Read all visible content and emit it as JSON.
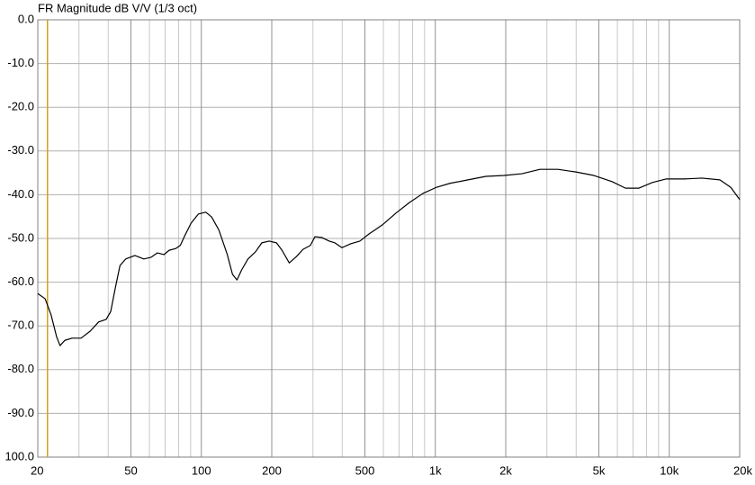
{
  "chart_data": {
    "type": "line",
    "title": "FR Magnitude dB V/V (1/3 oct)",
    "x": [
      20,
      21.5,
      22.8,
      24.1,
      24.9,
      26.1,
      28,
      30.6,
      33.5,
      36.4,
      39.2,
      41,
      42.9,
      44.9,
      47.5,
      52,
      56.8,
      61,
      64.9,
      69.2,
      72.9,
      77.8,
      81.3,
      84.9,
      90.4,
      97.2,
      104.5,
      110.7,
      118.9,
      128.8,
      135.9,
      142,
      148.7,
      158.2,
      170.2,
      181.3,
      194.9,
      209.5,
      221.2,
      237.6,
      255.4,
      272,
      292.4,
      306,
      328,
      352,
      372,
      399,
      436,
      476,
      520,
      594,
      679,
      775,
      886,
      1012,
      1155,
      1379,
      1646,
      1965,
      2346,
      2800,
      3343,
      3990,
      4765,
      5690,
      6500,
      7420,
      8470,
      9680,
      11560,
      13780,
      16450,
      18300,
      20000
    ],
    "values": [
      -62.6,
      -63.8,
      -67.5,
      -72.6,
      -74.5,
      -73.3,
      -72.8,
      -72.8,
      -71.2,
      -69.1,
      -68.5,
      -66.7,
      -61.3,
      -56.2,
      -54.7,
      -53.9,
      -54.7,
      -54.3,
      -53.3,
      -53.7,
      -52.7,
      -52.3,
      -51.6,
      -49.4,
      -46.5,
      -44.4,
      -44.0,
      -45.1,
      -48.1,
      -53.5,
      -58.2,
      -59.5,
      -57.2,
      -54.7,
      -53.1,
      -51.0,
      -50.6,
      -51.0,
      -52.7,
      -55.6,
      -54.1,
      -52.5,
      -51.6,
      -49.6,
      -49.8,
      -50.6,
      -51.0,
      -52.1,
      -51.2,
      -50.6,
      -49.0,
      -46.9,
      -44.2,
      -41.8,
      -39.7,
      -38.3,
      -37.4,
      -36.6,
      -35.8,
      -35.6,
      -35.2,
      -34.2,
      -34.2,
      -34.8,
      -35.6,
      -37.0,
      -38.5,
      -38.5,
      -37.2,
      -36.4,
      -36.4,
      -36.2,
      -36.6,
      -38.3,
      -41.1
    ],
    "color": "#000000",
    "xscale": "log",
    "xlim": [
      20,
      20000
    ],
    "xticks": [
      20,
      50,
      100,
      200,
      500,
      {
        "value": 1000,
        "label": "1k"
      },
      {
        "value": 2000,
        "label": "2k"
      },
      {
        "value": 5000,
        "label": "5k"
      },
      {
        "value": 10000,
        "label": "10k"
      },
      {
        "value": 20000,
        "label": "20k"
      }
    ],
    "xminorticks": [
      30,
      40,
      60,
      70,
      80,
      90,
      300,
      400,
      600,
      700,
      800,
      900,
      3000,
      4000,
      6000,
      7000,
      8000,
      9000
    ],
    "ylim": [
      -100,
      0
    ],
    "yticks": [
      {
        "value": 0,
        "label": "0.0"
      },
      {
        "value": -10,
        "label": "-10.0"
      },
      {
        "value": -20,
        "label": "-20.0"
      },
      {
        "value": -30,
        "label": "-30.0"
      },
      {
        "value": -40,
        "label": "-40.0"
      },
      {
        "value": -50,
        "label": "-50.0"
      },
      {
        "value": -60,
        "label": "-60.0"
      },
      {
        "value": -70,
        "label": "-70.0"
      },
      {
        "value": -80,
        "label": "-80.0"
      },
      {
        "value": -90,
        "label": "-90.0"
      },
      {
        "value": -100,
        "label": "100.0"
      }
    ],
    "grid": true,
    "cursor": {
      "x": 22,
      "color": "#d4a017"
    }
  }
}
